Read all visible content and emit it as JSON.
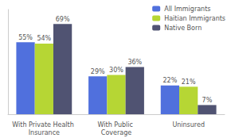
{
  "chart_data": {
    "type": "bar",
    "categories": [
      "With Private Health Insurance",
      "With Public Coverage",
      "Uninsured"
    ],
    "series": [
      {
        "name": "All Immigrants",
        "values": [
          55,
          29,
          22
        ],
        "value_labels": [
          "55%",
          "29%",
          "22%"
        ]
      },
      {
        "name": "Haitian Immigrants",
        "values": [
          54,
          30,
          21
        ],
        "value_labels": [
          "54%",
          "30%",
          "21%"
        ]
      },
      {
        "name": "Native Born",
        "values": [
          69,
          36,
          7
        ],
        "value_labels": [
          "69%",
          "36%",
          "7%"
        ]
      }
    ],
    "ylim": [
      0,
      80
    ],
    "grid": false,
    "legend": "upper right",
    "data_labels": true,
    "tick_labels": "x"
  }
}
